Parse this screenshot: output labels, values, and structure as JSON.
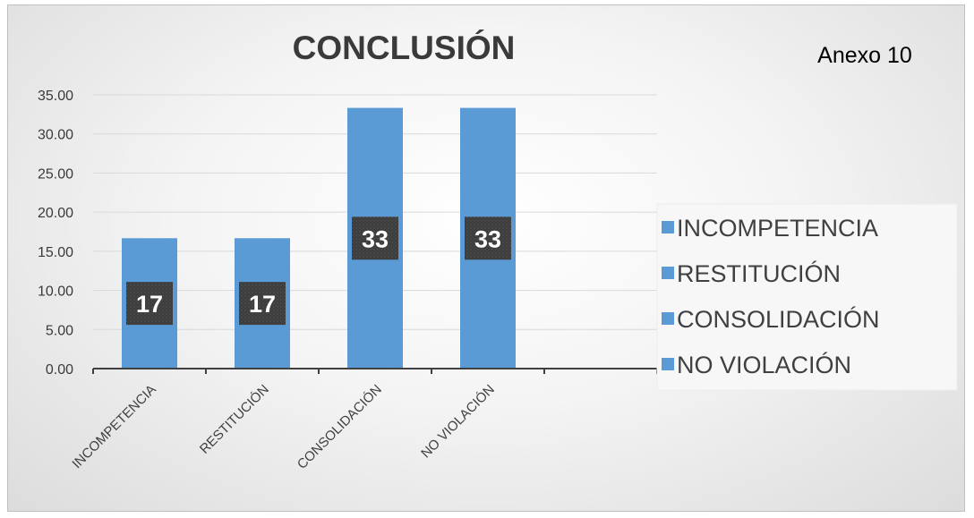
{
  "chart_data": {
    "type": "bar",
    "title": "CONCLUSIÓN",
    "annotation": "Anexo 10",
    "categories": [
      "INCOMPETENCIA",
      "RESTITUCIÓN",
      "CONSOLIDACIÓN",
      "NO VIOLACIÓN",
      ""
    ],
    "values": [
      16.67,
      16.67,
      33.33,
      33.33,
      null
    ],
    "data_labels": [
      "17",
      "17",
      "33",
      "33",
      ""
    ],
    "ylim": [
      0,
      35
    ],
    "yticks": [
      "0.00",
      "5.00",
      "10.00",
      "15.00",
      "20.00",
      "25.00",
      "30.00",
      "35.00"
    ],
    "ytick_values": [
      0,
      5,
      10,
      15,
      20,
      25,
      30,
      35
    ],
    "legend": {
      "position": "right",
      "entries": [
        "INCOMPETENCIA",
        "RESTITUCIÓN",
        "CONSOLIDACIÓN",
        "NO VIOLACIÓN"
      ]
    },
    "grid": true,
    "colors": {
      "bar": "#5b9bd5",
      "data_label_bg": "#3c3c3c",
      "grid": "#d9d9d9",
      "axis": "#404040"
    }
  }
}
